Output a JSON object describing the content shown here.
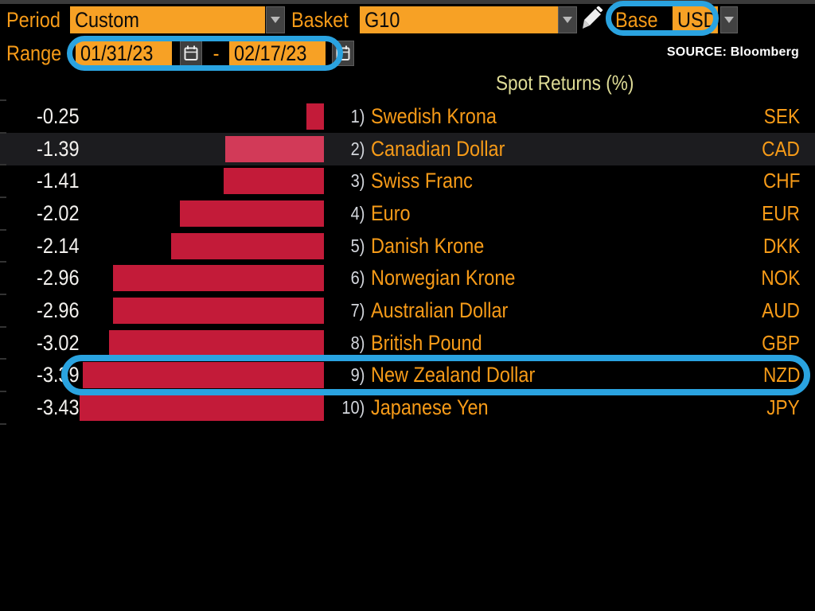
{
  "toolbar": {
    "period": {
      "label": "Period",
      "value": "Custom"
    },
    "basket": {
      "label": "Basket",
      "value": "G10"
    },
    "base": {
      "label": "Base",
      "value": "USD"
    },
    "range": {
      "label": "Range",
      "start": "01/31/23",
      "separator": "-",
      "end": "02/17/23"
    }
  },
  "source_note": "SOURCE: Bloomberg",
  "chart": {
    "title": "Spot Returns (%)",
    "rows": [
      {
        "rank": "1)",
        "name": "Swedish Krona",
        "code": "SEK",
        "value": "-0.25",
        "value_num": -0.25,
        "highlighted": false,
        "annotated": false
      },
      {
        "rank": "2)",
        "name": "Canadian Dollar",
        "code": "CAD",
        "value": "-1.39",
        "value_num": -1.39,
        "highlighted": true,
        "annotated": false
      },
      {
        "rank": "3)",
        "name": "Swiss Franc",
        "code": "CHF",
        "value": "-1.41",
        "value_num": -1.41,
        "highlighted": false,
        "annotated": false
      },
      {
        "rank": "4)",
        "name": "Euro",
        "code": "EUR",
        "value": "-2.02",
        "value_num": -2.02,
        "highlighted": false,
        "annotated": false
      },
      {
        "rank": "5)",
        "name": "Danish Krone",
        "code": "DKK",
        "value": "-2.14",
        "value_num": -2.14,
        "highlighted": false,
        "annotated": false
      },
      {
        "rank": "6)",
        "name": "Norwegian Krone",
        "code": "NOK",
        "value": "-2.96",
        "value_num": -2.96,
        "highlighted": false,
        "annotated": false
      },
      {
        "rank": "7)",
        "name": "Australian Dollar",
        "code": "AUD",
        "value": "-2.96",
        "value_num": -2.96,
        "highlighted": false,
        "annotated": false
      },
      {
        "rank": "8)",
        "name": "British Pound",
        "code": "GBP",
        "value": "-3.02",
        "value_num": -3.02,
        "highlighted": false,
        "annotated": false
      },
      {
        "rank": "9)",
        "name": "New Zealand Dollar",
        "code": "NZD",
        "value": "-3.39",
        "value_num": -3.39,
        "highlighted": false,
        "annotated": true
      },
      {
        "rank": "10)",
        "name": "Japanese Yen",
        "code": "JPY",
        "value": "-3.43",
        "value_num": -3.43,
        "highlighted": false,
        "annotated": false
      }
    ]
  },
  "chart_data": {
    "type": "bar",
    "orientation": "horizontal",
    "title": "Spot Returns (%)",
    "categories": [
      "Swedish Krona",
      "Canadian Dollar",
      "Swiss Franc",
      "Euro",
      "Danish Krone",
      "Norwegian Krone",
      "Australian Dollar",
      "British Pound",
      "New Zealand Dollar",
      "Japanese Yen"
    ],
    "values": [
      -0.25,
      -1.39,
      -1.41,
      -2.02,
      -2.14,
      -2.96,
      -2.96,
      -3.02,
      -3.39,
      -3.43
    ],
    "tickers": [
      "SEK",
      "CAD",
      "CHF",
      "EUR",
      "DKK",
      "NOK",
      "AUD",
      "GBP",
      "NZD",
      "JPY"
    ],
    "xlim": [
      -3.6,
      0
    ],
    "grid": false,
    "bar_color": "#c31b39"
  },
  "annotations": {
    "highlight_color": "#2aa3e0",
    "targets": [
      "date-range",
      "base-currency",
      "row-new-zealand-dollar"
    ]
  },
  "colors": {
    "background": "#000000",
    "accent_orange": "#f79b18",
    "field_orange": "#f7a125",
    "bar_red": "#c31b39",
    "bar_red_highlight": "#d23a58",
    "row_highlight_bg": "#1c1c1f",
    "title_yellow": "#dedb96",
    "value_white": "#f3f1ee",
    "annotation_blue": "#2aa3e0"
  }
}
